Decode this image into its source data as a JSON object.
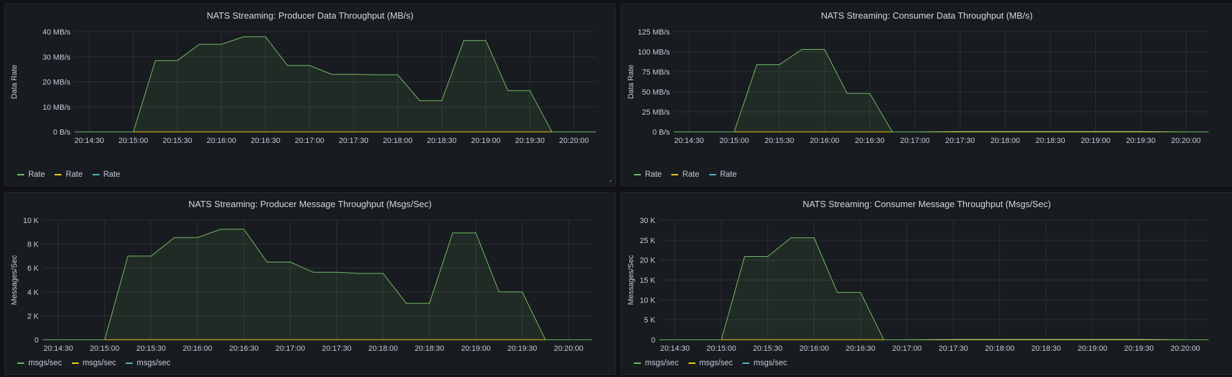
{
  "colors": {
    "series_green": "#73bf69",
    "series_yellow": "#f2cc0c",
    "series_blue": "#5794f2",
    "series_cyan": "#4fb8c9",
    "grid": "#2c3035",
    "axis_text": "#ccccdc",
    "panel_bg": "#181b1f"
  },
  "x_ticks": [
    "20:14:30",
    "20:15:00",
    "20:15:30",
    "20:16:00",
    "20:16:30",
    "20:17:00",
    "20:17:30",
    "20:18:00",
    "20:18:30",
    "20:19:00",
    "20:19:30",
    "20:20:00"
  ],
  "panels": [
    {
      "title": "NATS Streaming: Producer Data Throughput (MB/s)",
      "ylabel": "Data Rate",
      "legend": [
        "Rate",
        "Rate",
        "Rate"
      ]
    },
    {
      "title": "NATS Streaming: Consumer Data Throughput (MB/s)",
      "ylabel": "Data Rate",
      "legend": [
        "Rate",
        "Rate",
        "Rate"
      ]
    },
    {
      "title": "NATS Streaming: Producer Message Throughput (Msgs/Sec)",
      "ylabel": "Messages/Sec",
      "legend": [
        "msgs/sec",
        "msgs/sec",
        "msgs/sec"
      ]
    },
    {
      "title": "NATS Streaming: Consumer Message Throughput (Msgs/Sec)",
      "ylabel": "Messages/Sec",
      "legend": [
        "msgs/sec",
        "msgs/sec",
        "msgs/sec"
      ]
    }
  ],
  "chart_data": [
    {
      "type": "area",
      "title": "NATS Streaming: Producer Data Throughput (MB/s)",
      "ylabel": "Data Rate",
      "xlabel": "",
      "ylim": [
        0,
        40
      ],
      "y_ticks": [
        "0 B/s",
        "10 MB/s",
        "20 MB/s",
        "30 MB/s",
        "40 MB/s"
      ],
      "x_ticks": [
        "20:14:30",
        "20:15:00",
        "20:15:30",
        "20:16:00",
        "20:16:30",
        "20:17:00",
        "20:17:30",
        "20:18:00",
        "20:18:30",
        "20:19:00",
        "20:19:30",
        "20:20:00"
      ],
      "x_range": [
        "20:14:20",
        "20:20:15"
      ],
      "series": [
        {
          "name": "Rate",
          "color": "#73bf69",
          "x": [
            "20:14:20",
            "20:15:00",
            "20:15:15",
            "20:15:30",
            "20:15:45",
            "20:16:00",
            "20:16:15",
            "20:16:30",
            "20:16:45",
            "20:17:00",
            "20:17:15",
            "20:17:30",
            "20:17:45",
            "20:18:00",
            "20:18:15",
            "20:18:30",
            "20:18:45",
            "20:19:00",
            "20:19:15",
            "20:19:30",
            "20:19:45",
            "20:20:00",
            "20:20:15"
          ],
          "values": [
            0,
            0,
            28.5,
            28.5,
            35,
            35,
            38,
            38,
            26.5,
            26.5,
            23,
            23,
            22.8,
            22.8,
            12.5,
            12.5,
            36.5,
            36.5,
            16.5,
            16.5,
            0,
            0,
            0
          ]
        },
        {
          "name": "Rate",
          "color": "#f2cc0c",
          "x": [
            "20:14:20",
            "20:20:15"
          ],
          "values": [
            0,
            0
          ]
        },
        {
          "name": "Rate",
          "color": "#5794f2",
          "x": [
            "20:14:20",
            "20:20:15"
          ],
          "values": [
            0,
            0
          ]
        }
      ]
    },
    {
      "type": "area",
      "title": "NATS Streaming: Consumer Data Throughput (MB/s)",
      "ylabel": "Data Rate",
      "xlabel": "",
      "ylim": [
        0,
        125
      ],
      "y_ticks": [
        "0 B/s",
        "25 MB/s",
        "50 MB/s",
        "75 MB/s",
        "100 MB/s",
        "125 MB/s"
      ],
      "x_ticks": [
        "20:14:30",
        "20:15:00",
        "20:15:30",
        "20:16:00",
        "20:16:30",
        "20:17:00",
        "20:17:30",
        "20:18:00",
        "20:18:30",
        "20:19:00",
        "20:19:30",
        "20:20:00"
      ],
      "x_range": [
        "20:14:20",
        "20:20:15"
      ],
      "series": [
        {
          "name": "Rate",
          "color": "#73bf69",
          "x": [
            "20:14:20",
            "20:15:00",
            "20:15:15",
            "20:15:30",
            "20:15:45",
            "20:16:00",
            "20:16:15",
            "20:16:30",
            "20:16:45",
            "20:17:00",
            "20:17:30",
            "20:18:00",
            "20:18:30",
            "20:19:00",
            "20:19:30",
            "20:20:00",
            "20:20:15"
          ],
          "values": [
            0,
            0,
            84,
            84,
            103,
            103,
            48,
            48,
            0,
            0,
            0.5,
            0.5,
            0.5,
            0.5,
            0.5,
            0,
            0
          ]
        },
        {
          "name": "Rate",
          "color": "#f2cc0c",
          "x": [
            "20:14:20",
            "20:20:15"
          ],
          "values": [
            0,
            0
          ]
        },
        {
          "name": "Rate",
          "color": "#5794f2",
          "x": [
            "20:14:20",
            "20:20:15"
          ],
          "values": [
            0,
            0
          ]
        }
      ]
    },
    {
      "type": "area",
      "title": "NATS Streaming: Producer Message Throughput (Msgs/Sec)",
      "ylabel": "Messages/Sec",
      "xlabel": "",
      "ylim": [
        0,
        10000
      ],
      "y_ticks": [
        "0",
        "2 K",
        "4 K",
        "6 K",
        "8 K",
        "10 K"
      ],
      "x_ticks": [
        "20:14:30",
        "20:15:00",
        "20:15:30",
        "20:16:00",
        "20:16:30",
        "20:17:00",
        "20:17:30",
        "20:18:00",
        "20:18:30",
        "20:19:00",
        "20:19:30",
        "20:20:00"
      ],
      "x_range": [
        "20:14:20",
        "20:20:15"
      ],
      "series": [
        {
          "name": "msgs/sec",
          "color": "#73bf69",
          "x": [
            "20:14:20",
            "20:15:00",
            "20:15:15",
            "20:15:30",
            "20:15:45",
            "20:16:00",
            "20:16:15",
            "20:16:30",
            "20:16:45",
            "20:17:00",
            "20:17:15",
            "20:17:30",
            "20:17:45",
            "20:18:00",
            "20:18:15",
            "20:18:30",
            "20:18:45",
            "20:19:00",
            "20:19:15",
            "20:19:30",
            "20:19:45",
            "20:20:00",
            "20:20:15"
          ],
          "values": [
            0,
            0,
            7000,
            7000,
            8550,
            8550,
            9250,
            9250,
            6500,
            6500,
            5650,
            5650,
            5550,
            5550,
            3050,
            3050,
            8950,
            8950,
            4000,
            4000,
            0,
            0,
            0
          ]
        },
        {
          "name": "msgs/sec",
          "color": "#f2cc0c",
          "x": [
            "20:14:20",
            "20:20:15"
          ],
          "values": [
            0,
            0
          ]
        },
        {
          "name": "msgs/sec",
          "color": "#5794f2",
          "x": [
            "20:14:20",
            "20:20:15"
          ],
          "values": [
            0,
            0
          ]
        }
      ]
    },
    {
      "type": "area",
      "title": "NATS Streaming: Consumer Message Throughput (Msgs/Sec)",
      "ylabel": "Messages/Sec",
      "xlabel": "",
      "ylim": [
        0,
        30000
      ],
      "y_ticks": [
        "0",
        "5 K",
        "10 K",
        "15 K",
        "20 K",
        "25 K",
        "30 K"
      ],
      "x_ticks": [
        "20:14:30",
        "20:15:00",
        "20:15:30",
        "20:16:00",
        "20:16:30",
        "20:17:00",
        "20:17:30",
        "20:18:00",
        "20:18:30",
        "20:19:00",
        "20:19:30",
        "20:20:00"
      ],
      "x_range": [
        "20:14:20",
        "20:20:15"
      ],
      "series": [
        {
          "name": "msgs/sec",
          "color": "#73bf69",
          "x": [
            "20:14:20",
            "20:15:00",
            "20:15:15",
            "20:15:30",
            "20:15:45",
            "20:16:00",
            "20:16:15",
            "20:16:30",
            "20:16:45",
            "20:17:00",
            "20:17:30",
            "20:18:00",
            "20:18:30",
            "20:19:00",
            "20:19:30",
            "20:20:00",
            "20:20:15"
          ],
          "values": [
            0,
            0,
            20900,
            20900,
            25600,
            25600,
            11900,
            11900,
            0,
            0,
            100,
            100,
            100,
            100,
            100,
            0,
            0
          ]
        },
        {
          "name": "msgs/sec",
          "color": "#f2cc0c",
          "x": [
            "20:14:20",
            "20:20:15"
          ],
          "values": [
            0,
            0
          ]
        },
        {
          "name": "msgs/sec",
          "color": "#5794f2",
          "x": [
            "20:14:20",
            "20:20:15"
          ],
          "values": [
            0,
            0
          ]
        }
      ]
    }
  ]
}
